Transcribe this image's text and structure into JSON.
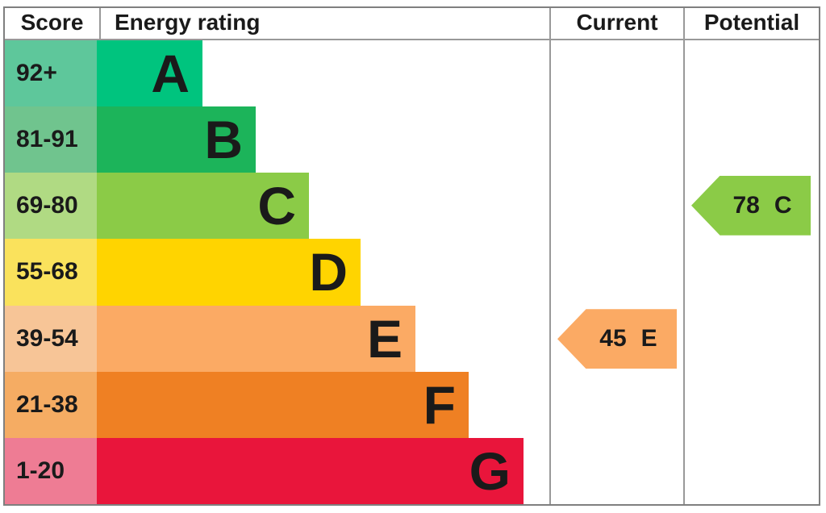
{
  "header": {
    "score": "Score",
    "energy_rating": "Energy rating",
    "current": "Current",
    "potential": "Potential"
  },
  "chart_data": {
    "type": "bar",
    "description": "EPC energy efficiency rating bands with current and potential scores",
    "bands": [
      {
        "letter": "A",
        "range": "92+",
        "bar_color": "#00c47e",
        "score_cell_color": "#5ec79b"
      },
      {
        "letter": "B",
        "range": "81-91",
        "bar_color": "#1cb45a",
        "score_cell_color": "#70c48e"
      },
      {
        "letter": "C",
        "range": "69-80",
        "bar_color": "#8bcb47",
        "score_cell_color": "#b0da83"
      },
      {
        "letter": "D",
        "range": "55-68",
        "bar_color": "#ffd400",
        "score_cell_color": "#fae25c"
      },
      {
        "letter": "E",
        "range": "39-54",
        "bar_color": "#fbaa64",
        "score_cell_color": "#f7c597"
      },
      {
        "letter": "F",
        "range": "21-38",
        "bar_color": "#ef8023",
        "score_cell_color": "#f5ac63"
      },
      {
        "letter": "G",
        "range": "1-20",
        "bar_color": "#e9153b",
        "score_cell_color": "#ee7c94"
      }
    ],
    "current": {
      "value": 45,
      "letter": "E",
      "color": "#fbaa64"
    },
    "potential": {
      "value": 78,
      "letter": "C",
      "color": "#8bcb47"
    }
  }
}
